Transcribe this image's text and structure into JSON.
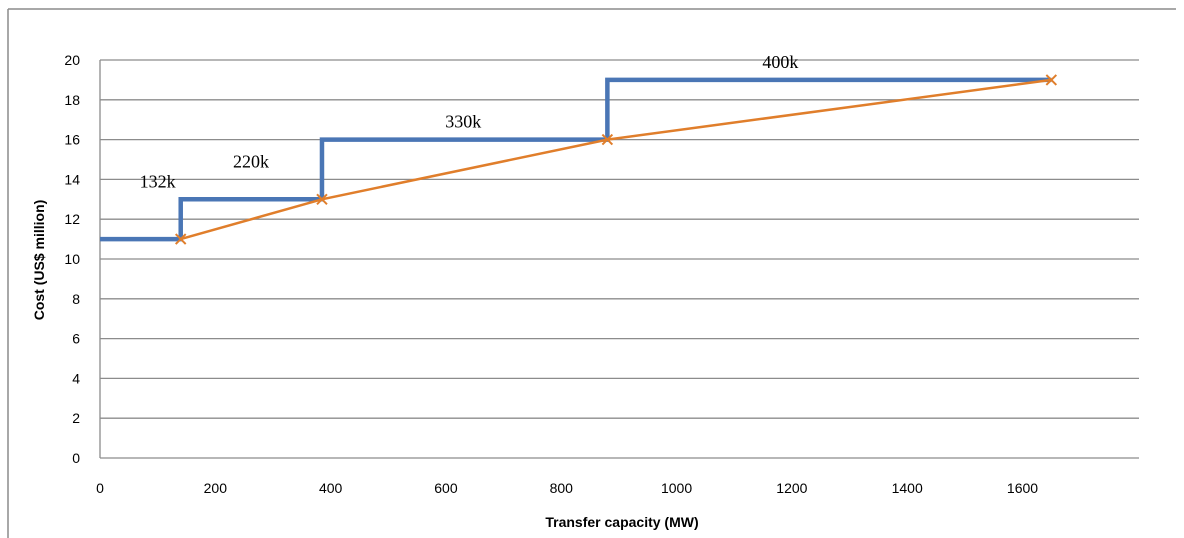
{
  "chart_data": {
    "type": "line",
    "xlabel": "Transfer capacity (MW)",
    "ylabel": "Cost (US$ million)",
    "xlim": [
      0,
      1650
    ],
    "ylim": [
      0,
      20
    ],
    "x_ticks": [
      "0",
      "200",
      "400",
      "600",
      "800",
      "1000",
      "1200",
      "1400",
      "1600"
    ],
    "y_ticks": [
      "0",
      "2",
      "4",
      "6",
      "8",
      "10",
      "12",
      "14",
      "16",
      "18",
      "20"
    ],
    "grid": "horizontal",
    "legend": "none",
    "series": [
      {
        "kind": "step",
        "color": "#4a76b5",
        "points": [
          [
            0,
            11
          ],
          [
            140,
            11
          ],
          [
            140,
            13
          ],
          [
            385,
            13
          ],
          [
            385,
            16
          ],
          [
            880,
            16
          ],
          [
            880,
            19
          ],
          [
            1650,
            19
          ]
        ]
      },
      {
        "kind": "line-markers",
        "color": "#e07e2b",
        "points": [
          [
            140,
            11
          ],
          [
            385,
            13
          ],
          [
            880,
            16
          ],
          [
            1650,
            19
          ]
        ]
      }
    ],
    "annotations": [
      {
        "text": "132k",
        "x": 100,
        "y": 13.6
      },
      {
        "text": "220k",
        "x": 262,
        "y": 14.6
      },
      {
        "text": "330k",
        "x": 630,
        "y": 16.6
      },
      {
        "text": "400k",
        "x": 1180,
        "y": 19.6
      }
    ]
  }
}
